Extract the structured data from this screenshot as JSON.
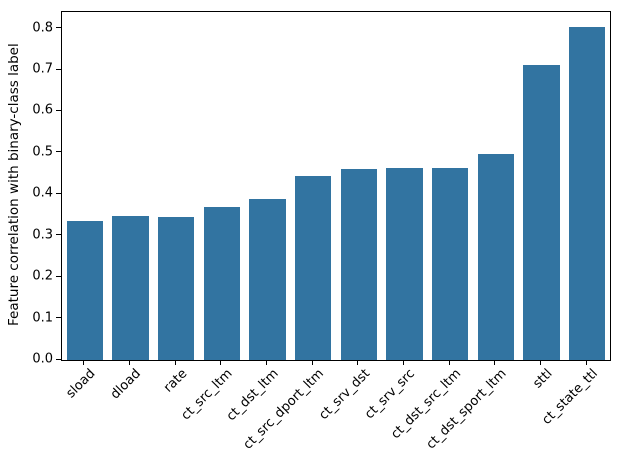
{
  "chart_data": {
    "type": "bar",
    "title": "",
    "xlabel": "",
    "ylabel": "Feature correlation with binary-class label",
    "categories": [
      "sload",
      "dload",
      "rate",
      "ct_src_ltm",
      "ct_dst_ltm",
      "ct_src_dport_ltm",
      "ct_srv_dst",
      "ct_srv_src",
      "ct_dst_src_ltm",
      "ct_dst_sport_ltm",
      "sttl",
      "ct_state_ttl"
    ],
    "values": [
      0.335,
      0.347,
      0.346,
      0.37,
      0.388,
      0.445,
      0.46,
      0.463,
      0.463,
      0.497,
      0.712,
      0.803
    ],
    "ylim": [
      0,
      0.84
    ],
    "yticks": [
      "0.0",
      "0.1",
      "0.2",
      "0.3",
      "0.4",
      "0.5",
      "0.6",
      "0.7",
      "0.8"
    ],
    "ytick_values": [
      0.0,
      0.1,
      0.2,
      0.3,
      0.4,
      0.5,
      0.6,
      0.7,
      0.8
    ],
    "bar_width_fraction": 0.8,
    "x_label_rotation_deg": 45,
    "grid": false,
    "legend": null,
    "colors": {
      "bar": "#3274a1",
      "spine": "#000000",
      "text": "#000000",
      "background": "#ffffff"
    }
  }
}
